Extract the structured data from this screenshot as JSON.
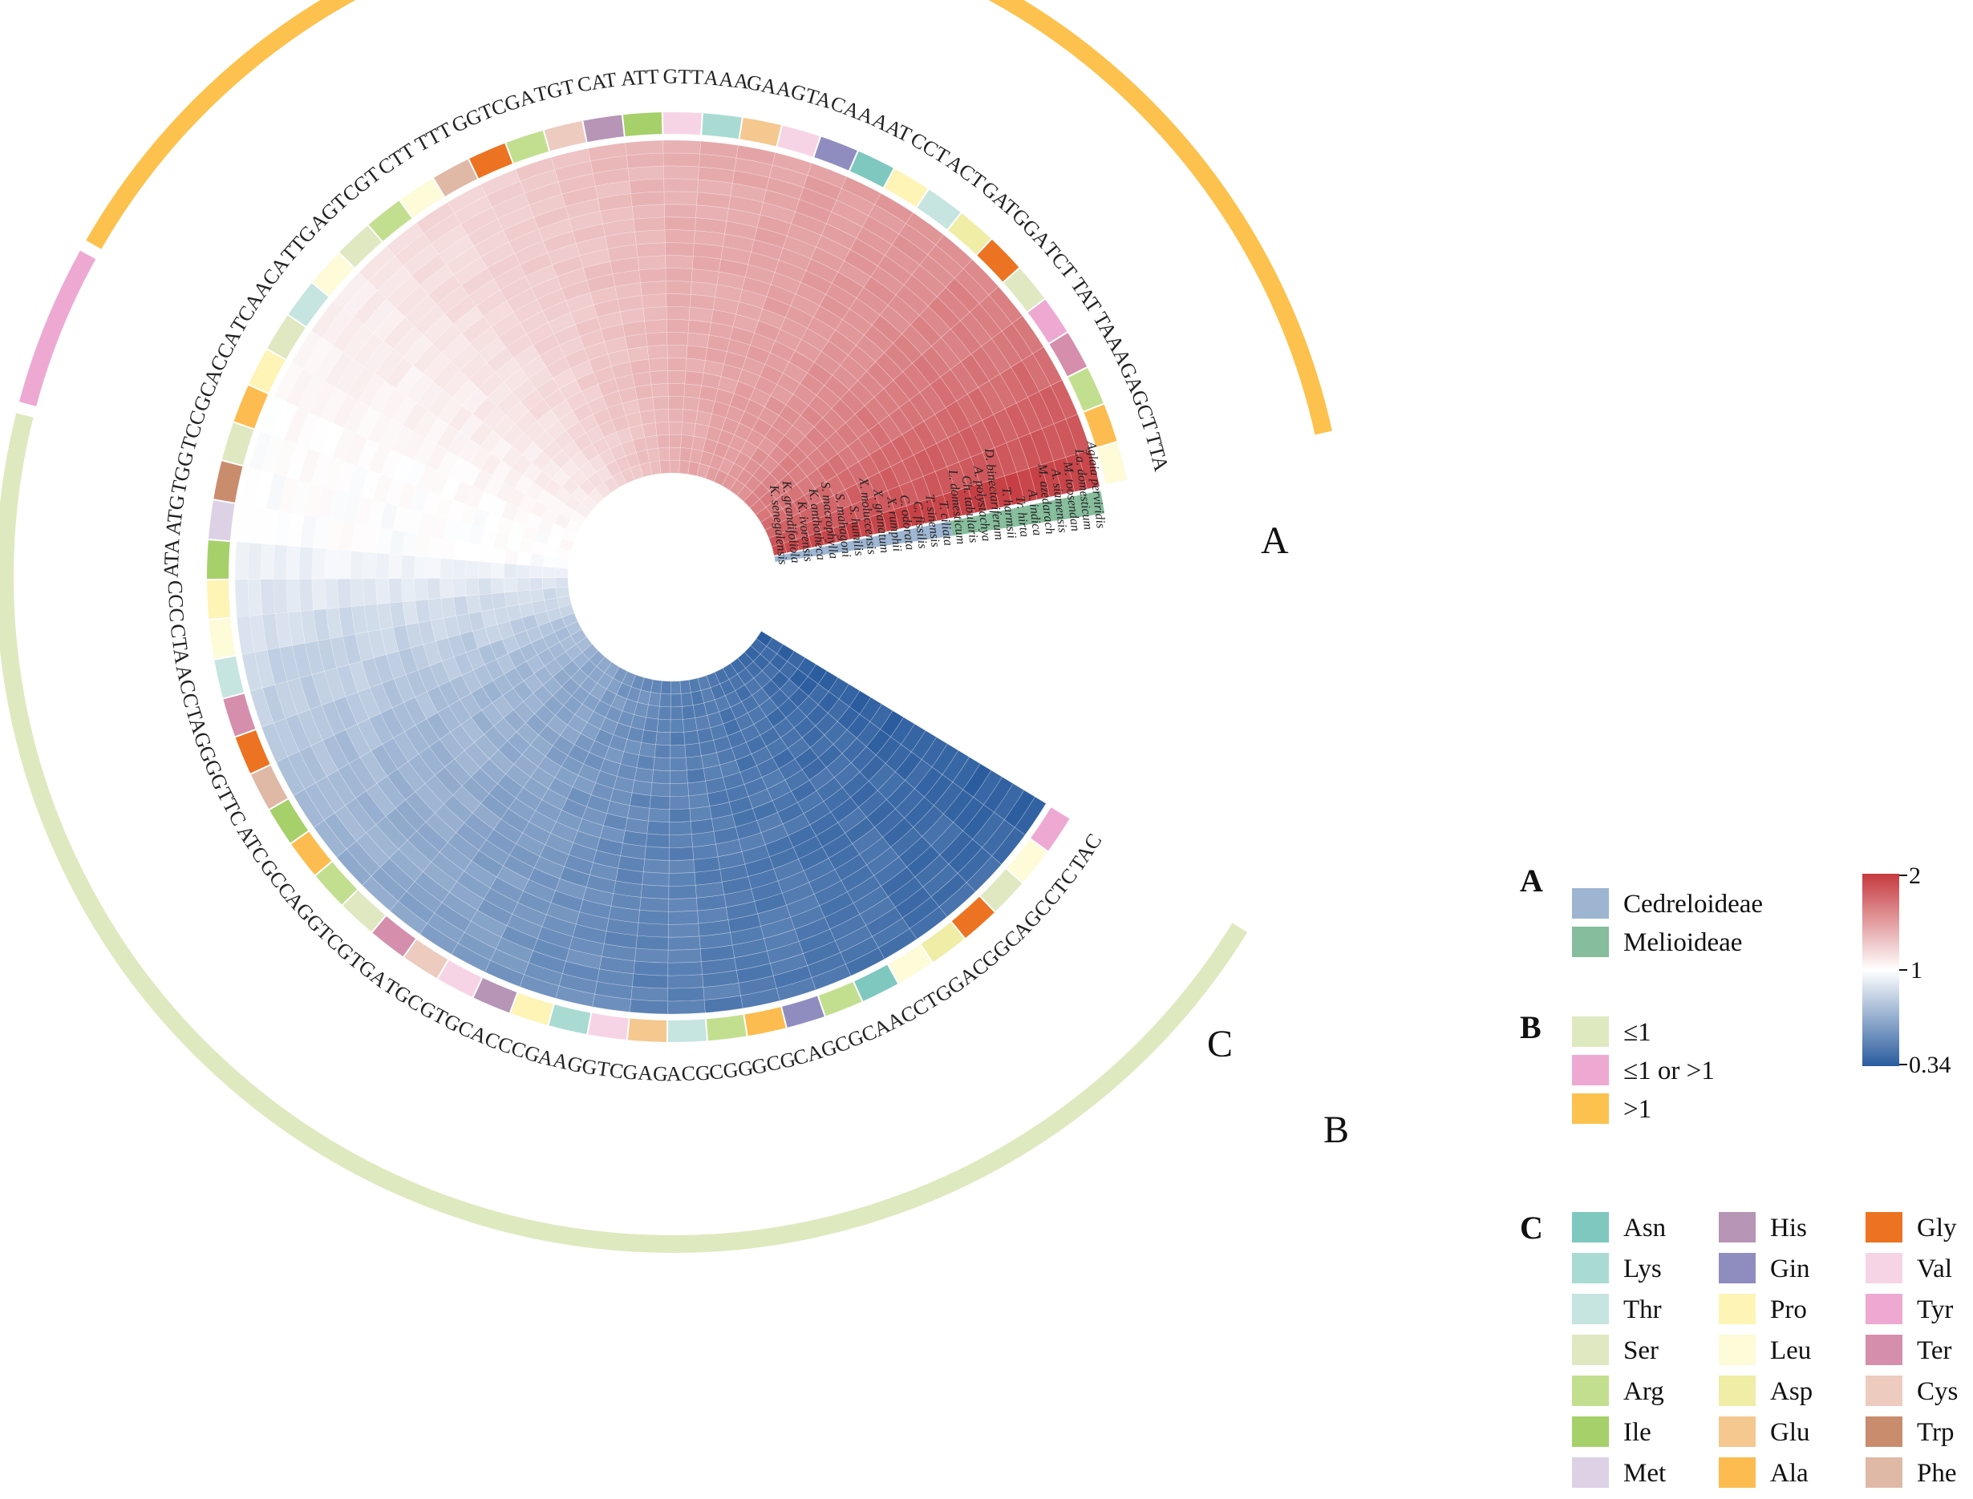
{
  "chart_data": {
    "type": "heatmap",
    "layout": "circular",
    "title": "",
    "codon_order": [
      "TTA",
      "GCT",
      "AGA",
      "TAA",
      "TAT",
      "TCT",
      "GGA",
      "GAT",
      "ACT",
      "CCT",
      "AAT",
      "CAA",
      "GTA",
      "GAA",
      "AAA",
      "GTT",
      "ATT",
      "CAT",
      "TGT",
      "CGA",
      "GGT",
      "TTT",
      "CTT",
      "CGT",
      "AGT",
      "TTG",
      "ACA",
      "TCA",
      "CCA",
      "GCA",
      "TCC",
      "TGG",
      "ATG",
      "ATA",
      "CCC",
      "CTA",
      "ACC",
      "TAG",
      "GGG",
      "TTC",
      "ATC",
      "GCC",
      "AGG",
      "TCG",
      "TGA",
      "TGC",
      "GTG",
      "CAC",
      "CCG",
      "AAG",
      "GTC",
      "GAG",
      "ACG",
      "CGG",
      "GCG",
      "CAG",
      "CGC",
      "AAC",
      "CTG",
      "GAC",
      "GGC",
      "AGC",
      "CTC",
      "TAC"
    ],
    "amino_acids": [
      "Leu",
      "Ala",
      "Arg",
      "Ter",
      "Tyr",
      "Ser",
      "Gly",
      "Asp",
      "Thr",
      "Pro",
      "Asn",
      "Gin",
      "Val",
      "Glu",
      "Lys",
      "Val",
      "Ile",
      "His",
      "Cys",
      "Arg",
      "Gly",
      "Phe",
      "Leu",
      "Arg",
      "Ser",
      "Leu",
      "Thr",
      "Ser",
      "Pro",
      "Ala",
      "Ser",
      "Trp",
      "Met",
      "Ile",
      "Pro",
      "Leu",
      "Thr",
      "Ter",
      "Gly",
      "Phe",
      "Ile",
      "Ala",
      "Arg",
      "Ser",
      "Ter",
      "Cys",
      "Val",
      "His",
      "Pro",
      "Lys",
      "Val",
      "Glu",
      "Thr",
      "Arg",
      "Ala",
      "Gin",
      "Arg",
      "Asn",
      "Leu",
      "Asp",
      "Gly",
      "Ser",
      "Leu",
      "Tyr"
    ],
    "rscu_mean": [
      1.95,
      1.85,
      1.8,
      1.75,
      1.7,
      1.66,
      1.62,
      1.58,
      1.55,
      1.52,
      1.5,
      1.48,
      1.46,
      1.44,
      1.42,
      1.4,
      1.37,
      1.34,
      1.31,
      1.28,
      1.25,
      1.22,
      1.19,
      1.16,
      1.13,
      1.1,
      1.08,
      1.06,
      1.04,
      1.02,
      1.01,
      1.0,
      1.0,
      0.95,
      0.9,
      0.86,
      0.83,
      0.8,
      0.77,
      0.74,
      0.72,
      0.7,
      0.68,
      0.66,
      0.64,
      0.62,
      0.6,
      0.58,
      0.56,
      0.54,
      0.52,
      0.5,
      0.49,
      0.48,
      0.47,
      0.46,
      0.45,
      0.44,
      0.43,
      0.42,
      0.41,
      0.4,
      0.38,
      0.36
    ],
    "species": [
      "K. senegalensis",
      "K. grandifoliola",
      "K. ivorensis",
      "K. anthotheca",
      "S. macrophylla",
      "S. mahagoni",
      "S. humilis",
      "X. moluccensis",
      "X. granatum",
      "X. rumphii",
      "C. odorata",
      "C. fissilis",
      "T. sinensis",
      "T. ciliata",
      "L. domesticum",
      "Ch. tabularis",
      "A. polystachya",
      "D. binectariferum",
      "T. harmsii",
      "Tr. hirta",
      "A. indica",
      "M. azedarach",
      "A. siamensis",
      "M. toosendan",
      "La. domesticum",
      "Aglaia perviridis"
    ],
    "species_groups": [
      "Cedreloideae",
      "Cedreloideae",
      "Cedreloideae",
      "Cedreloideae",
      "Cedreloideae",
      "Cedreloideae",
      "Cedreloideae",
      "Cedreloideae",
      "Cedreloideae",
      "Cedreloideae",
      "Cedreloideae",
      "Cedreloideae",
      "Cedreloideae",
      "Cedreloideae",
      "Melioideae",
      "Melioideae",
      "Melioideae",
      "Melioideae",
      "Melioideae",
      "Melioideae",
      "Melioideae",
      "Melioideae",
      "Melioideae",
      "Melioideae",
      "Melioideae",
      "Melioideae"
    ],
    "colorbar": {
      "min": 0.34,
      "mid": 1,
      "max": 2,
      "min_label": "0.34",
      "mid_label": "1",
      "max_label": "2",
      "low_color": "#2a5c9e",
      "mid_color": "#ffffff",
      "high_color": "#c53a3f"
    },
    "track_b": [
      {
        "category": ">1",
        "from": "TTA",
        "to": "TCA"
      },
      {
        "category": "≤1 or >1",
        "from": "CCA",
        "to": "TCC"
      },
      {
        "category": "≤1",
        "from": "TGG",
        "to": "TAC"
      }
    ]
  },
  "labels": {
    "A": "A",
    "B": "B",
    "C": "C"
  },
  "legend": {
    "A": {
      "title": "A",
      "items": [
        {
          "label": "Cedreloideae",
          "color": "#9db5d1"
        },
        {
          "label": "Melioideae",
          "color": "#86bd9c"
        }
      ]
    },
    "B": {
      "title": "B",
      "items": [
        {
          "label": "≤1",
          "color": "#dfe9bf"
        },
        {
          "label": "≤1 or >1",
          "color": "#eea9d3"
        },
        {
          "label": ">1",
          "color": "#fdc14d"
        }
      ]
    },
    "C": {
      "title": "C",
      "columns": [
        [
          {
            "label": "Asn",
            "color": "#7ec8bf"
          },
          {
            "label": "Lys",
            "color": "#a9dbd3"
          },
          {
            "label": "Thr",
            "color": "#c6e4e0"
          },
          {
            "label": "Ser",
            "color": "#dfe8c1"
          },
          {
            "label": "Arg",
            "color": "#c2df8f"
          },
          {
            "label": "Ile",
            "color": "#a6d06a"
          },
          {
            "label": "Met",
            "color": "#ddd1e6"
          }
        ],
        [
          {
            "label": "His",
            "color": "#b695b6"
          },
          {
            "label": "Gin",
            "color": "#8f8dc0"
          },
          {
            "label": "Pro",
            "color": "#fdf4b6"
          },
          {
            "label": "Leu",
            "color": "#fdfbd8"
          },
          {
            "label": "Asp",
            "color": "#efeda6"
          },
          {
            "label": "Glu",
            "color": "#f4c88f"
          },
          {
            "label": "Ala",
            "color": "#fdbc50"
          }
        ],
        [
          {
            "label": "Gly",
            "color": "#ec7321"
          },
          {
            "label": "Val",
            "color": "#f7d4e5"
          },
          {
            "label": "Tyr",
            "color": "#eea9d3"
          },
          {
            "label": "Ter",
            "color": "#d58eac"
          },
          {
            "label": "Cys",
            "color": "#edcbbf"
          },
          {
            "label": "Trp",
            "color": "#c98d6e"
          },
          {
            "label": "Phe",
            "color": "#dfb9a6"
          }
        ]
      ]
    }
  }
}
